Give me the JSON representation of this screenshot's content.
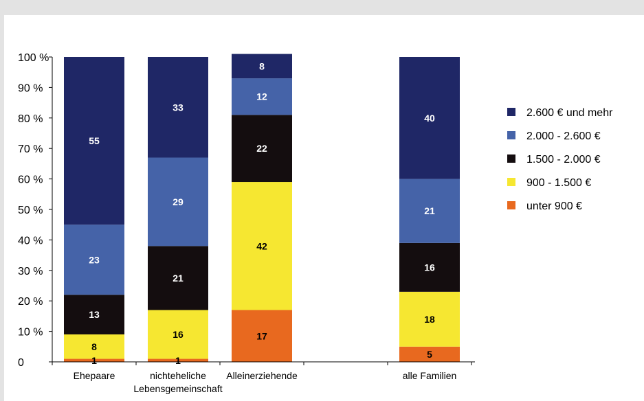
{
  "colors": {
    "background": "#e3e3e3",
    "plot_background": "#ffffff",
    "axis": "#000000"
  },
  "chart_data": {
    "type": "bar",
    "stacked": true,
    "ylim": [
      0,
      100
    ],
    "yticks": [
      {
        "value": 0,
        "label": "0"
      },
      {
        "value": 10,
        "label": "10 %"
      },
      {
        "value": 20,
        "label": "20 %"
      },
      {
        "value": 30,
        "label": "30 %"
      },
      {
        "value": 40,
        "label": "40 %"
      },
      {
        "value": 50,
        "label": "50 %"
      },
      {
        "value": 60,
        "label": "60 %"
      },
      {
        "value": 70,
        "label": "70 %"
      },
      {
        "value": 80,
        "label": "80 %"
      },
      {
        "value": 90,
        "label": "90 %"
      },
      {
        "value": 100,
        "label": "100 %"
      }
    ],
    "categories": [
      [
        "Ehepaare"
      ],
      [
        "nichteheliche",
        "Lebensgemeinschaft"
      ],
      [
        "Alleinerziehende"
      ],
      [
        ""
      ],
      [
        "alle Familien"
      ]
    ],
    "series": [
      {
        "name": "unter 900 €",
        "color": "#e8691f",
        "label_color": "#000000",
        "values": [
          1,
          1,
          17,
          null,
          5
        ]
      },
      {
        "name": "900 - 1.500 €",
        "color": "#f6e731",
        "label_color": "#000000",
        "values": [
          8,
          16,
          42,
          null,
          18
        ]
      },
      {
        "name": "1.500 - 2.000 €",
        "color": "#140d0f",
        "label_color": "#ffffff",
        "values": [
          13,
          21,
          22,
          null,
          16
        ]
      },
      {
        "name": "2.000 - 2.600 €",
        "color": "#4563a8",
        "label_color": "#ffffff",
        "values": [
          23,
          29,
          12,
          null,
          21
        ]
      },
      {
        "name": "2.600 € und mehr",
        "color": "#1f2766",
        "label_color": "#ffffff",
        "values": [
          55,
          33,
          8,
          null,
          40
        ]
      }
    ],
    "legend_position": "right",
    "grid": false
  }
}
